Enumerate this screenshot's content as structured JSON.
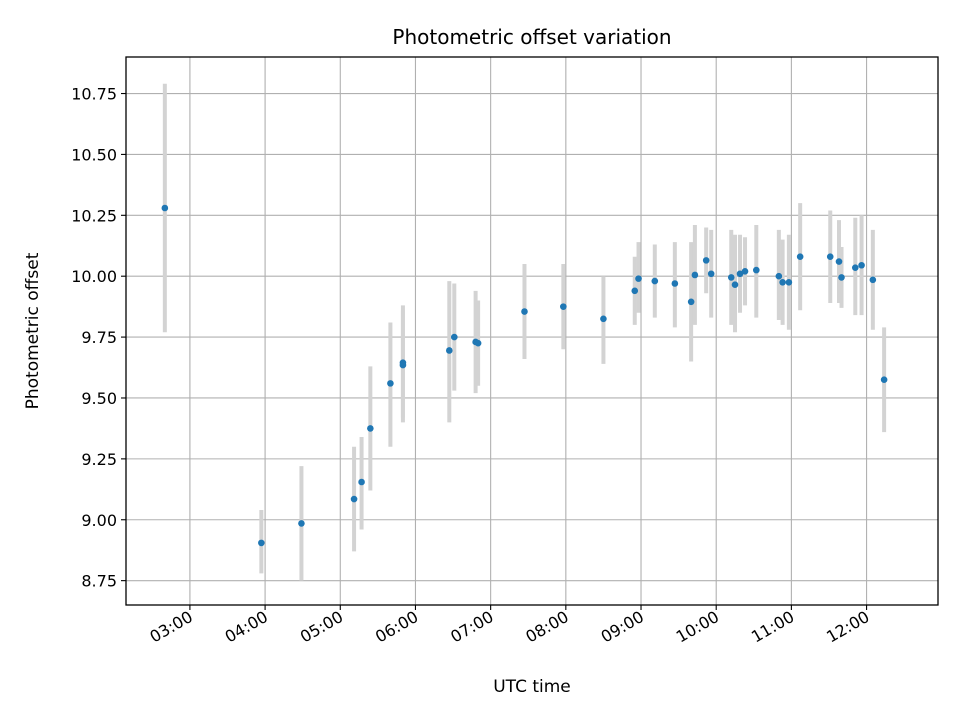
{
  "chart_data": {
    "type": "scatter",
    "title": "Photometric offset variation",
    "xlabel": "UTC time",
    "ylabel": "Photometric offset",
    "x_tick_labels": [
      "03:00",
      "04:00",
      "05:00",
      "06:00",
      "07:00",
      "08:00",
      "09:00",
      "10:00",
      "11:00",
      "12:00"
    ],
    "x_ticks_hours": [
      3,
      4,
      5,
      6,
      7,
      8,
      9,
      10,
      11,
      12
    ],
    "xlim_hours": [
      2.15,
      12.95
    ],
    "ylim": [
      8.65,
      10.9
    ],
    "y_ticks": [
      8.75,
      9.0,
      9.25,
      9.5,
      9.75,
      10.0,
      10.25,
      10.5,
      10.75
    ],
    "y_tick_labels": [
      "8.75",
      "9.00",
      "9.25",
      "9.50",
      "9.75",
      "10.00",
      "10.25",
      "10.50",
      "10.75"
    ],
    "grid": true,
    "marker_color": "#1f77b4",
    "errorbar_color": "#d3d3d3",
    "points": [
      {
        "t": "02:40",
        "y": 10.28,
        "lo": 9.77,
        "hi": 10.79
      },
      {
        "t": "03:57",
        "y": 8.905,
        "lo": 8.78,
        "hi": 9.04
      },
      {
        "t": "04:29",
        "y": 8.985,
        "lo": 8.75,
        "hi": 9.22
      },
      {
        "t": "05:11",
        "y": 9.085,
        "lo": 8.87,
        "hi": 9.3
      },
      {
        "t": "05:17",
        "y": 9.155,
        "lo": 8.96,
        "hi": 9.34
      },
      {
        "t": "05:24",
        "y": 9.375,
        "lo": 9.12,
        "hi": 9.63
      },
      {
        "t": "05:40",
        "y": 9.56,
        "lo": 9.3,
        "hi": 9.81
      },
      {
        "t": "05:50",
        "y": 9.645,
        "lo": 9.4,
        "hi": 9.88
      },
      {
        "t": "05:50",
        "y": 9.635,
        "lo": 9.42,
        "hi": 9.86
      },
      {
        "t": "06:27",
        "y": 9.695,
        "lo": 9.4,
        "hi": 9.98
      },
      {
        "t": "06:31",
        "y": 9.75,
        "lo": 9.53,
        "hi": 9.97
      },
      {
        "t": "06:48",
        "y": 9.73,
        "lo": 9.52,
        "hi": 9.94
      },
      {
        "t": "06:50",
        "y": 9.725,
        "lo": 9.55,
        "hi": 9.9
      },
      {
        "t": "07:27",
        "y": 9.855,
        "lo": 9.66,
        "hi": 10.05
      },
      {
        "t": "07:58",
        "y": 9.875,
        "lo": 9.7,
        "hi": 10.05
      },
      {
        "t": "08:30",
        "y": 9.825,
        "lo": 9.64,
        "hi": 10.0
      },
      {
        "t": "08:55",
        "y": 9.94,
        "lo": 9.8,
        "hi": 10.08
      },
      {
        "t": "08:58",
        "y": 9.99,
        "lo": 9.85,
        "hi": 10.14
      },
      {
        "t": "09:11",
        "y": 9.98,
        "lo": 9.83,
        "hi": 10.13
      },
      {
        "t": "09:27",
        "y": 9.97,
        "lo": 9.79,
        "hi": 10.14
      },
      {
        "t": "09:40",
        "y": 9.895,
        "lo": 9.65,
        "hi": 10.14
      },
      {
        "t": "09:43",
        "y": 10.005,
        "lo": 9.8,
        "hi": 10.21
      },
      {
        "t": "09:52",
        "y": 10.065,
        "lo": 9.93,
        "hi": 10.2
      },
      {
        "t": "09:56",
        "y": 10.01,
        "lo": 9.83,
        "hi": 10.19
      },
      {
        "t": "10:12",
        "y": 9.995,
        "lo": 9.8,
        "hi": 10.19
      },
      {
        "t": "10:15",
        "y": 9.965,
        "lo": 9.77,
        "hi": 10.17
      },
      {
        "t": "10:19",
        "y": 10.01,
        "lo": 9.85,
        "hi": 10.17
      },
      {
        "t": "10:23",
        "y": 10.02,
        "lo": 9.88,
        "hi": 10.16
      },
      {
        "t": "10:32",
        "y": 10.025,
        "lo": 9.83,
        "hi": 10.21
      },
      {
        "t": "10:50",
        "y": 10.0,
        "lo": 9.82,
        "hi": 10.19
      },
      {
        "t": "10:53",
        "y": 9.975,
        "lo": 9.8,
        "hi": 10.15
      },
      {
        "t": "10:58",
        "y": 9.975,
        "lo": 9.78,
        "hi": 10.17
      },
      {
        "t": "11:07",
        "y": 10.08,
        "lo": 9.86,
        "hi": 10.3
      },
      {
        "t": "11:31",
        "y": 10.08,
        "lo": 9.89,
        "hi": 10.27
      },
      {
        "t": "11:38",
        "y": 10.06,
        "lo": 9.89,
        "hi": 10.23
      },
      {
        "t": "11:40",
        "y": 9.995,
        "lo": 9.87,
        "hi": 10.12
      },
      {
        "t": "11:51",
        "y": 10.035,
        "lo": 9.84,
        "hi": 10.24
      },
      {
        "t": "11:56",
        "y": 10.045,
        "lo": 9.84,
        "hi": 10.25
      },
      {
        "t": "12:05",
        "y": 9.985,
        "lo": 9.78,
        "hi": 10.19
      },
      {
        "t": "12:14",
        "y": 9.575,
        "lo": 9.36,
        "hi": 9.79
      }
    ]
  }
}
